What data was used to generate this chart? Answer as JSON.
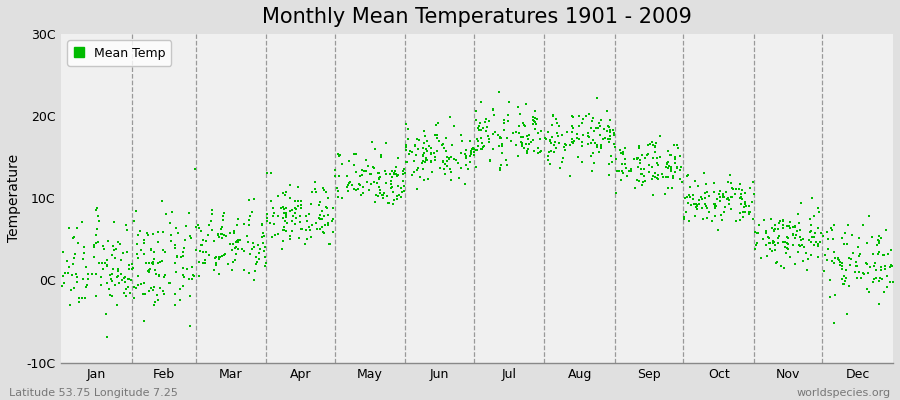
{
  "title": "Monthly Mean Temperatures 1901 - 2009",
  "ylabel": "Temperature",
  "ylim": [
    -10,
    30
  ],
  "yticks": [
    -10,
    0,
    10,
    20,
    30
  ],
  "ytick_labels": [
    "-10C",
    "0C",
    "10C",
    "20C",
    "30C"
  ],
  "months": [
    "Jan",
    "Feb",
    "Mar",
    "Apr",
    "May",
    "Jun",
    "Jul",
    "Aug",
    "Sep",
    "Oct",
    "Nov",
    "Dec"
  ],
  "month_days": [
    31,
    28,
    31,
    30,
    31,
    30,
    31,
    31,
    30,
    31,
    30,
    31
  ],
  "month_means": [
    1.5,
    1.8,
    4.2,
    7.8,
    12.5,
    15.5,
    17.5,
    17.2,
    14.0,
    9.5,
    5.2,
    2.5
  ],
  "month_stds": [
    2.8,
    3.0,
    2.2,
    2.0,
    1.8,
    1.8,
    1.6,
    1.7,
    1.5,
    1.6,
    1.9,
    2.4
  ],
  "n_years": 109,
  "dot_color": "#00BB00",
  "dot_size": 3,
  "plot_bg_color": "#F0F0F0",
  "outer_bg_color": "#E0E0E0",
  "grid_color": "#999999",
  "title_fontsize": 15,
  "label_fontsize": 10,
  "tick_fontsize": 9,
  "bottom_left_text": "Latitude 53.75 Longitude 7.25",
  "bottom_right_text": "worldspecies.org",
  "legend_label": "Mean Temp"
}
